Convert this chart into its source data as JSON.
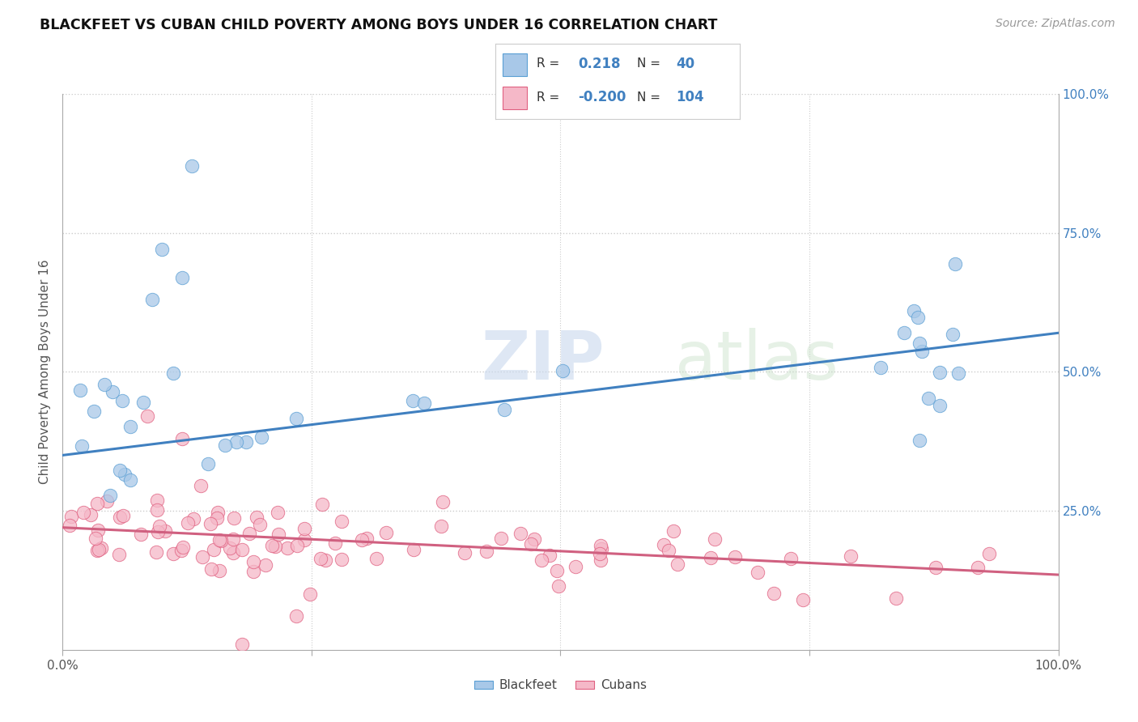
{
  "title": "BLACKFEET VS CUBAN CHILD POVERTY AMONG BOYS UNDER 16 CORRELATION CHART",
  "source": "Source: ZipAtlas.com",
  "ylabel": "Child Poverty Among Boys Under 16",
  "watermark_zip": "ZIP",
  "watermark_atlas": "atlas",
  "xlim": [
    0.0,
    1.0
  ],
  "ylim": [
    0.0,
    1.0
  ],
  "blackfeet_color": "#a8c8e8",
  "blackfeet_edge_color": "#5a9fd4",
  "cuban_color": "#f5b8c8",
  "cuban_edge_color": "#e06080",
  "blackfeet_line_color": "#4080c0",
  "cuban_line_color": "#d06080",
  "R_blackfeet": 0.218,
  "N_blackfeet": 40,
  "R_cuban": -0.2,
  "N_cuban": 104,
  "bf_line_x0": 0.0,
  "bf_line_y0": 0.35,
  "bf_line_x1": 1.0,
  "bf_line_y1": 0.57,
  "cu_line_x0": 0.0,
  "cu_line_y0": 0.22,
  "cu_line_x1": 1.0,
  "cu_line_y1": 0.135
}
